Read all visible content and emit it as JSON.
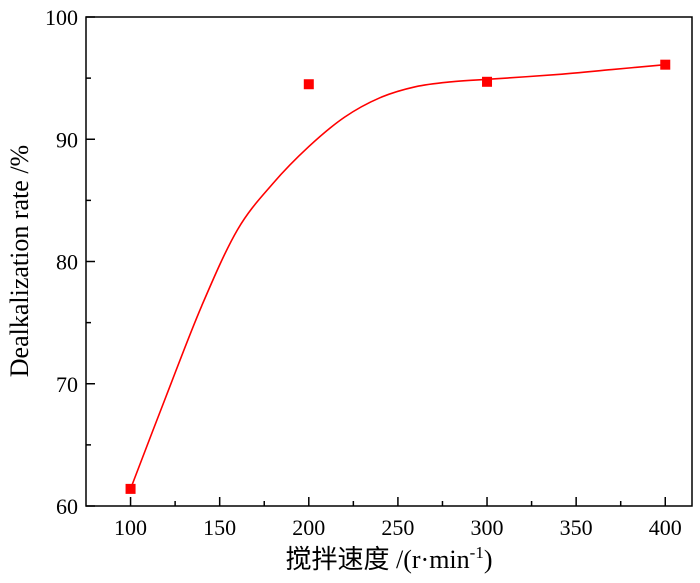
{
  "chart_data": {
    "type": "scatter",
    "title": "",
    "xlabel": "搅拌速度 /(r·min",
    "xlabel_sup": "-1",
    "xlabel_close": ")",
    "ylabel": "Dealkalization rate /%",
    "xlim": [
      75,
      415
    ],
    "ylim": [
      60,
      100
    ],
    "x_ticks": [
      100,
      150,
      200,
      250,
      300,
      350,
      400
    ],
    "x_tick_labels": [
      "100",
      "150",
      "200",
      "250",
      "300",
      "350",
      "400"
    ],
    "y_ticks": [
      60,
      70,
      80,
      90,
      100
    ],
    "y_tick_labels": [
      "60",
      "70",
      "80",
      "90",
      "100"
    ],
    "grid": false,
    "legend": false,
    "series": [
      {
        "marker": "square",
        "color": "#ff0000",
        "x": [
          100,
          200,
          300,
          400
        ],
        "y": [
          61.4,
          94.5,
          94.7,
          96.1
        ]
      }
    ],
    "fit_curve": {
      "color": "#ff0000",
      "x": [
        100,
        120,
        140,
        160,
        180,
        200,
        220,
        240,
        260,
        280,
        300,
        340,
        370,
        400
      ],
      "y": [
        61.4,
        69.0,
        76.4,
        82.6,
        86.4,
        89.4,
        91.8,
        93.4,
        94.3,
        94.7,
        94.9,
        95.3,
        95.7,
        96.1
      ]
    }
  }
}
